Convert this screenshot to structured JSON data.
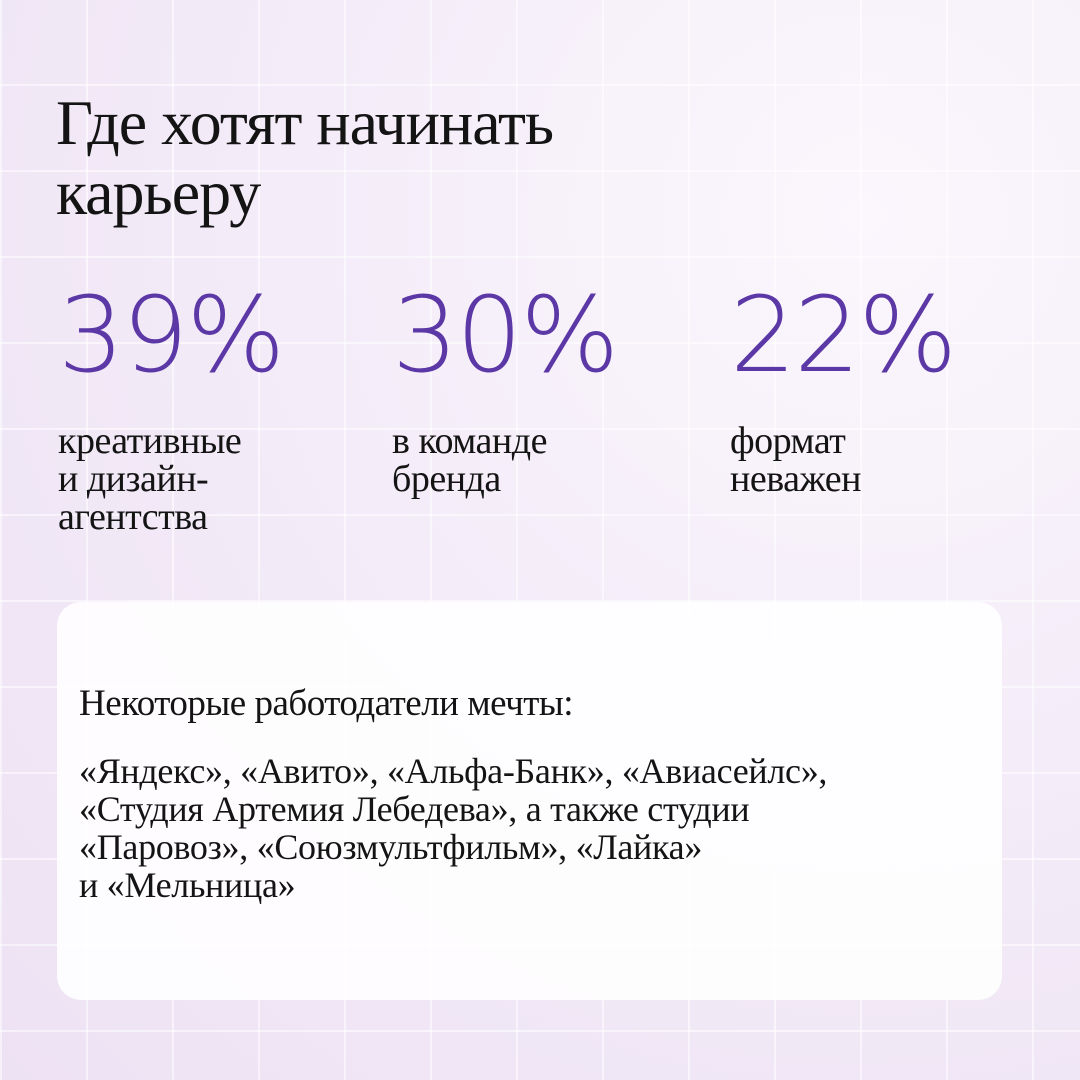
{
  "header": {
    "title_lines": [
      "Где хотят начинать",
      "карьеру"
    ]
  },
  "stats": [
    {
      "value": "39%",
      "label_lines": [
        "креативные",
        "и дизайн-",
        "агентства"
      ]
    },
    {
      "value": "30%",
      "label_lines": [
        "в команде",
        "бренда"
      ]
    },
    {
      "value": "22%",
      "label_lines": [
        "формат",
        "неважен"
      ]
    }
  ],
  "card": {
    "heading": "Некоторые работодатели мечты:",
    "text_lines": [
      "«Яндекс», «Авито», «Альфа-Банк», «Авиасейлс»,",
      "«Студия Артемия Лебедева», а также студии",
      "«Паровоз», «Союзмультфильм», «Лайка»",
      "и «Мельница»"
    ]
  }
}
